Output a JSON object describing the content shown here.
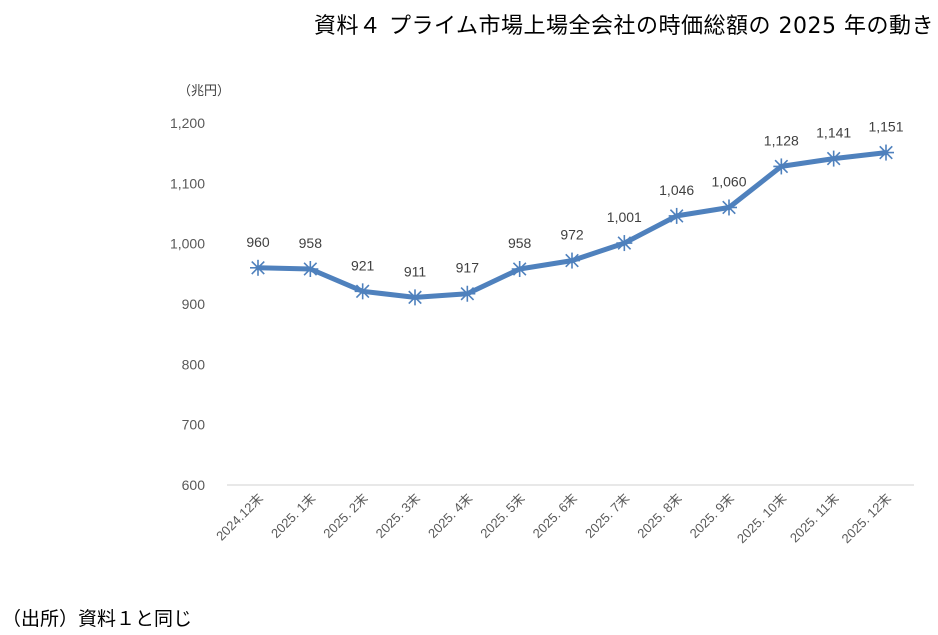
{
  "title": "資料４ プライム市場上場全会社の時価総額の 2025 年の動き",
  "unit_label": "（兆円）",
  "source_note": "（出所）資料１と同じ",
  "colors": {
    "line": "#4f81bd",
    "marker": "#4f81bd",
    "axis": "#d9d9d9",
    "tick_text": "#595959",
    "data_label": "#404040"
  },
  "chart_data": {
    "type": "line",
    "title": "資料４ プライム市場上場全会社の時価総額の 2025 年の動き",
    "xlabel": "",
    "ylabel": "（兆円）",
    "ylim": [
      600,
      1200
    ],
    "yticks": [
      600,
      700,
      800,
      900,
      1000,
      1100,
      1200
    ],
    "ytick_labels": [
      "600",
      "700",
      "800",
      "900",
      "1,000",
      "1,100",
      "1,200"
    ],
    "grid": false,
    "legend": null,
    "marker": "asterisk",
    "categories": [
      "2024.12末",
      "2025. 1末",
      "2025. 2末",
      "2025. 3末",
      "2025. 4末",
      "2025. 5末",
      "2025. 6末",
      "2025. 7末",
      "2025. 8末",
      "2025. 9末",
      "2025. 10末",
      "2025. 11末",
      "2025. 12末"
    ],
    "series": [
      {
        "name": "時価総額",
        "values": [
          960,
          958,
          921,
          911,
          917,
          958,
          972,
          1001,
          1046,
          1060,
          1128,
          1141,
          1151
        ],
        "labels": [
          "960",
          "958",
          "921",
          "911",
          "917",
          "958",
          "972",
          "1,001",
          "1,046",
          "1,060",
          "1,128",
          "1,141",
          "1,151"
        ]
      }
    ]
  }
}
